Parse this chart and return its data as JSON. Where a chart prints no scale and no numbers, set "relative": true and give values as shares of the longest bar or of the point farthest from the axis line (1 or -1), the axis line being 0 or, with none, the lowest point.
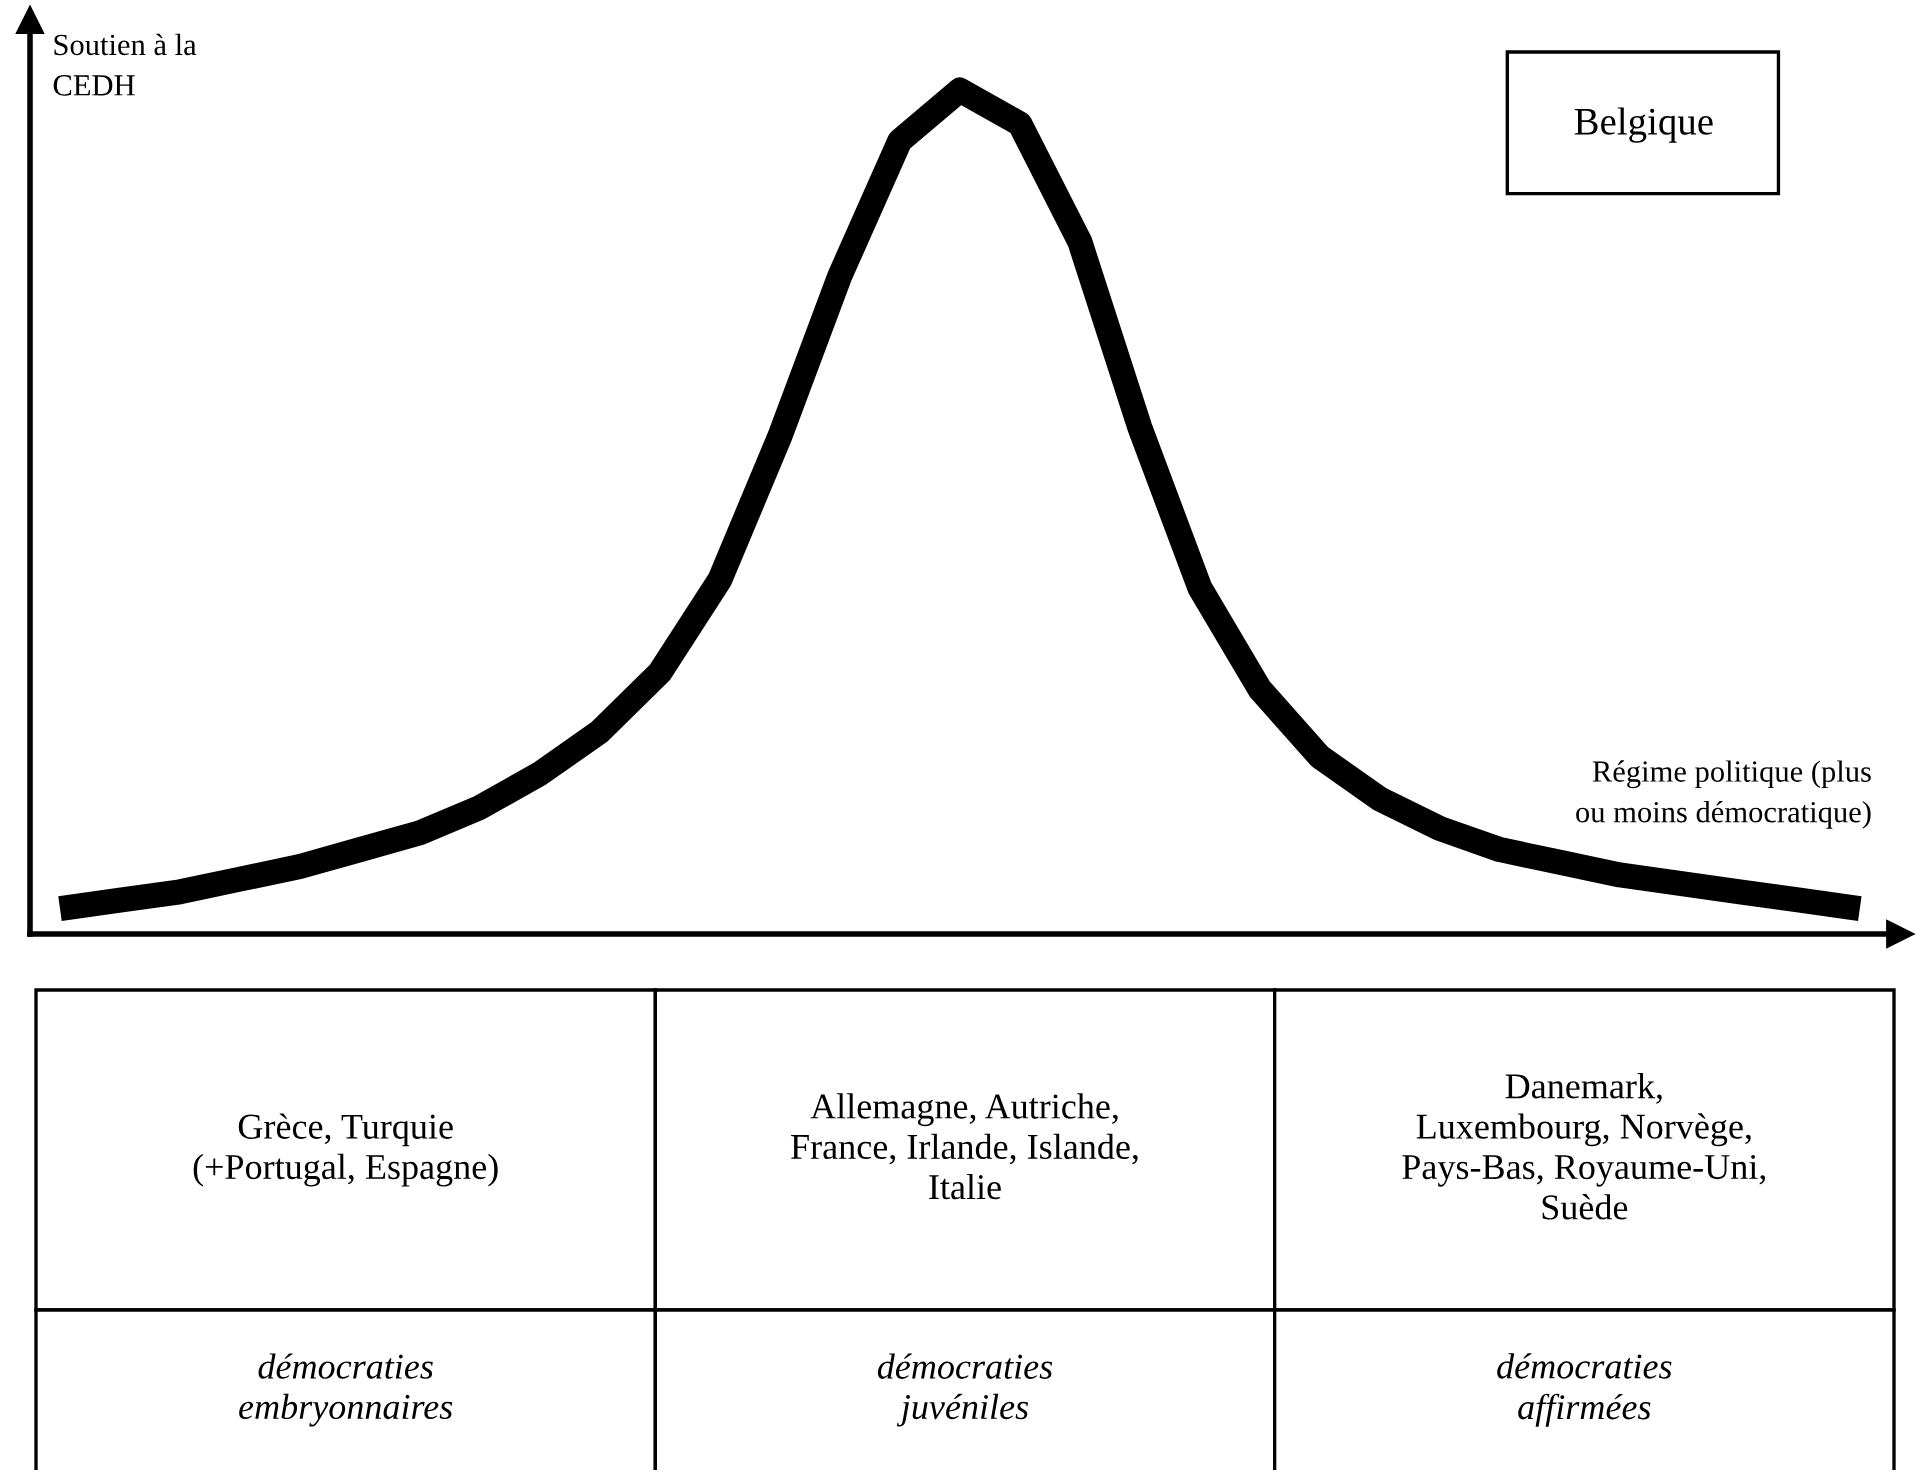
{
  "chart_data": {
    "type": "line",
    "relative": true,
    "color": "#000000",
    "xlabel": "Régime politique (plus\nou moins démocratique)",
    "ylabel": "Soutien à la\nCEDH",
    "categories": [
      null,
      null,
      null,
      null,
      null,
      null,
      null,
      null,
      null,
      null,
      null,
      null,
      null,
      null,
      null,
      null,
      null,
      null,
      null,
      null,
      null,
      null,
      null,
      null,
      null,
      null,
      null,
      null,
      null,
      null,
      null
    ],
    "values": [
      0.03,
      0.04,
      0.05,
      0.065,
      0.08,
      0.1,
      0.12,
      0.15,
      0.19,
      0.24,
      0.31,
      0.42,
      0.59,
      0.78,
      0.94,
      1.0,
      0.96,
      0.82,
      0.6,
      0.41,
      0.29,
      0.21,
      0.16,
      0.125,
      0.1,
      0.085,
      0.07,
      0.06,
      0.05,
      0.04,
      0.03
    ],
    "annotations": [
      "Belgique",
      "Grèce, Turquie\n(+Portugal, Espagne)",
      "Allemagne, Autriche,\nFrance, Irlande, Islande,\nItalie",
      "Danemark,\nLuxembourg, Norvège,\nPays-Bas, Royaume-Uni,\nSuède",
      "démocraties\nembryonnaires",
      "démocraties\njuvéniles",
      "démocraties\naffirmées"
    ],
    "legend": false
  }
}
